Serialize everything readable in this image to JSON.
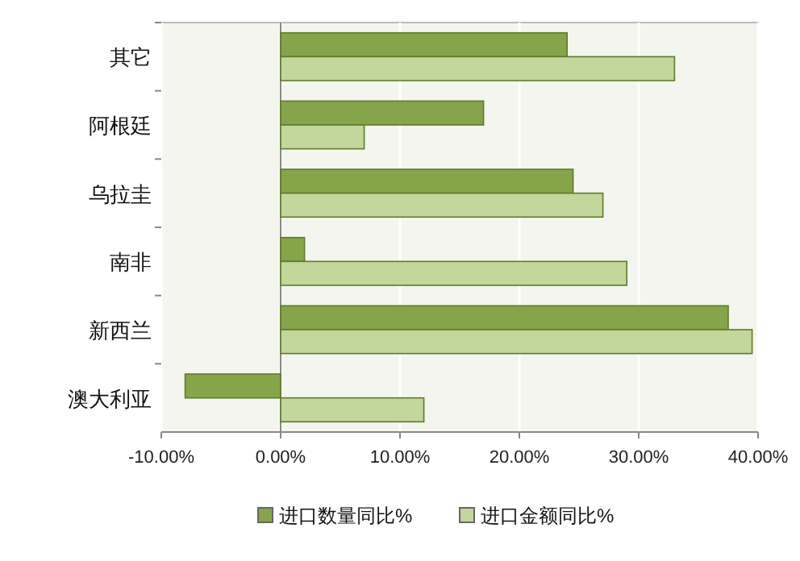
{
  "chart_data": {
    "type": "bar",
    "orientation": "horizontal",
    "categories": [
      "其它",
      "阿根廷",
      "乌拉圭",
      "南非",
      "新西兰",
      "澳大利亚"
    ],
    "series": [
      {
        "name": "进口数量同比%",
        "color": "#86a44a",
        "values": [
          24,
          17,
          24.5,
          2,
          37.5,
          -8
        ]
      },
      {
        "name": "进口金额同比%",
        "color": "#c3d69b",
        "values": [
          33,
          7,
          27,
          29,
          39.5,
          12
        ]
      }
    ],
    "xlim": [
      -10,
      40
    ],
    "xticks": [
      {
        "value": -10,
        "label": "-10.00%"
      },
      {
        "value": 0,
        "label": "0.00%"
      },
      {
        "value": 10,
        "label": "10.00%"
      },
      {
        "value": 20,
        "label": "20.00%"
      },
      {
        "value": 30,
        "label": "30.00%"
      },
      {
        "value": 40,
        "label": "40.00%"
      }
    ],
    "grid": "x",
    "legend": "bottom"
  }
}
